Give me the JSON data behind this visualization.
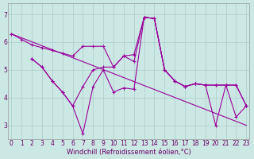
{
  "xlabel": "Windchill (Refroidissement éolien,°C)",
  "line1_x": [
    0,
    1,
    2,
    3,
    4,
    5,
    6,
    7,
    8,
    9,
    10,
    11,
    12,
    13,
    14,
    15,
    16,
    17,
    18,
    19,
    20,
    21,
    22,
    23
  ],
  "line1_y": [
    6.3,
    6.1,
    5.9,
    5.8,
    5.7,
    5.6,
    5.5,
    5.85,
    5.85,
    5.85,
    5.1,
    5.5,
    5.55,
    6.9,
    6.85,
    5.0,
    4.6,
    4.4,
    4.5,
    4.45,
    4.45,
    4.45,
    4.45,
    3.7
  ],
  "line2_x": [
    2,
    3,
    4,
    5,
    6,
    7,
    8,
    9,
    10,
    11,
    12,
    13,
    14,
    15,
    16,
    17,
    18,
    19,
    20,
    21,
    22,
    23
  ],
  "line2_y": [
    5.4,
    5.1,
    4.6,
    4.2,
    3.7,
    4.4,
    5.0,
    5.1,
    5.1,
    5.5,
    5.3,
    6.9,
    6.85,
    5.0,
    4.6,
    4.4,
    4.5,
    4.45,
    4.45,
    4.45,
    4.45,
    3.7
  ],
  "line3_x": [
    2,
    3,
    4,
    5,
    6,
    7,
    8,
    9,
    10,
    11,
    12,
    13,
    14,
    15,
    16,
    17,
    18,
    19,
    20,
    21,
    22,
    23
  ],
  "line3_y": [
    5.4,
    5.1,
    4.6,
    4.2,
    3.7,
    2.7,
    4.4,
    5.0,
    4.2,
    4.35,
    4.3,
    6.9,
    6.85,
    5.0,
    4.6,
    4.4,
    4.5,
    4.45,
    3.0,
    4.45,
    3.3,
    3.7
  ],
  "trend_x": [
    0,
    23
  ],
  "trend_y": [
    6.3,
    3.0
  ],
  "bg_color": "#cce8e4",
  "line_color": "#990099",
  "grid_color": "#aacccc",
  "yticks": [
    3,
    4,
    5,
    6,
    7
  ],
  "xticks": [
    0,
    1,
    2,
    3,
    4,
    5,
    6,
    7,
    8,
    9,
    10,
    11,
    12,
    13,
    14,
    15,
    16,
    17,
    18,
    19,
    20,
    21,
    22,
    23
  ],
  "ylim": [
    2.5,
    7.4
  ],
  "xlim": [
    -0.3,
    23.3
  ],
  "tick_fontsize": 5.5,
  "xlabel_fontsize": 6.0
}
